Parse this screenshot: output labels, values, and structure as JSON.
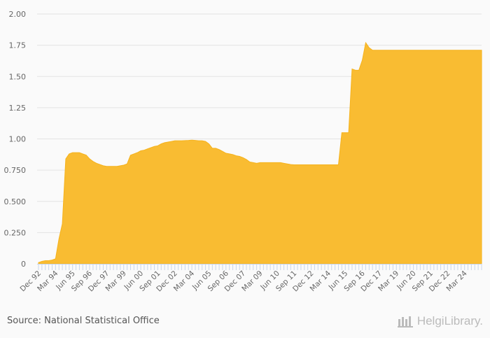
{
  "chart_data": {
    "type": "area",
    "title": "",
    "xlabel": "",
    "ylabel": "",
    "frequency": "quarterly",
    "first_period": "Dec 92",
    "ylim": [
      0,
      2.0
    ],
    "yticks": [
      "0",
      "0.250",
      "0.500",
      "0.750",
      "1.00",
      "1.25",
      "1.50",
      "1.75",
      "2.00"
    ],
    "ytick_values": [
      0,
      0.25,
      0.5,
      0.75,
      1.0,
      1.25,
      1.5,
      1.75,
      2.0
    ],
    "xticks": [
      "Dec 92",
      "Mar 94",
      "Jun 95",
      "Sep 96",
      "Dec 97",
      "Mar 99",
      "Jun 00",
      "Sep 01",
      "Dec 02",
      "Mar 04",
      "Jun 05",
      "Sep 06",
      "Dec 07",
      "Mar 09",
      "Jun 10",
      "Sep 11",
      "Dec 12",
      "Mar 14",
      "Jun 15",
      "Sep 16",
      "Dec 17",
      "Mar 19",
      "Jun 20",
      "Sep 21",
      "Dec 22",
      "Mar 24"
    ],
    "xtick_every_n_quarters": 5,
    "grid": true,
    "color": "#f9bc32",
    "values": [
      0.01,
      0.02,
      0.025,
      0.025,
      0.03,
      0.04,
      0.2,
      0.32,
      0.84,
      0.88,
      0.89,
      0.89,
      0.89,
      0.88,
      0.87,
      0.84,
      0.82,
      0.805,
      0.795,
      0.785,
      0.78,
      0.78,
      0.78,
      0.78,
      0.785,
      0.79,
      0.8,
      0.87,
      0.88,
      0.89,
      0.905,
      0.91,
      0.92,
      0.93,
      0.94,
      0.945,
      0.96,
      0.97,
      0.975,
      0.98,
      0.985,
      0.985,
      0.985,
      0.987,
      0.988,
      0.99,
      0.988,
      0.985,
      0.985,
      0.98,
      0.96,
      0.925,
      0.925,
      0.915,
      0.9,
      0.885,
      0.88,
      0.875,
      0.865,
      0.86,
      0.85,
      0.835,
      0.815,
      0.81,
      0.805,
      0.81,
      0.81,
      0.81,
      0.81,
      0.81,
      0.81,
      0.81,
      0.805,
      0.8,
      0.795,
      0.793,
      0.793,
      0.793,
      0.793,
      0.793,
      0.793,
      0.793,
      0.793,
      0.793,
      0.793,
      0.793,
      0.793,
      0.793,
      0.793,
      1.05,
      1.05,
      1.05,
      1.56,
      1.55,
      1.55,
      1.63,
      1.77,
      1.73,
      1.71,
      1.71,
      1.71,
      1.71,
      1.71,
      1.71,
      1.71,
      1.71,
      1.71,
      1.71,
      1.71,
      1.71,
      1.71,
      1.71,
      1.71,
      1.71,
      1.71,
      1.71,
      1.71,
      1.71,
      1.71,
      1.71,
      1.71,
      1.71,
      1.71,
      1.71,
      1.71,
      1.71,
      1.71,
      1.71,
      1.71,
      1.71,
      1.71
    ]
  },
  "footer": {
    "source": "Source: National Statistical Office",
    "logo_text": "HelgiLibrary."
  }
}
